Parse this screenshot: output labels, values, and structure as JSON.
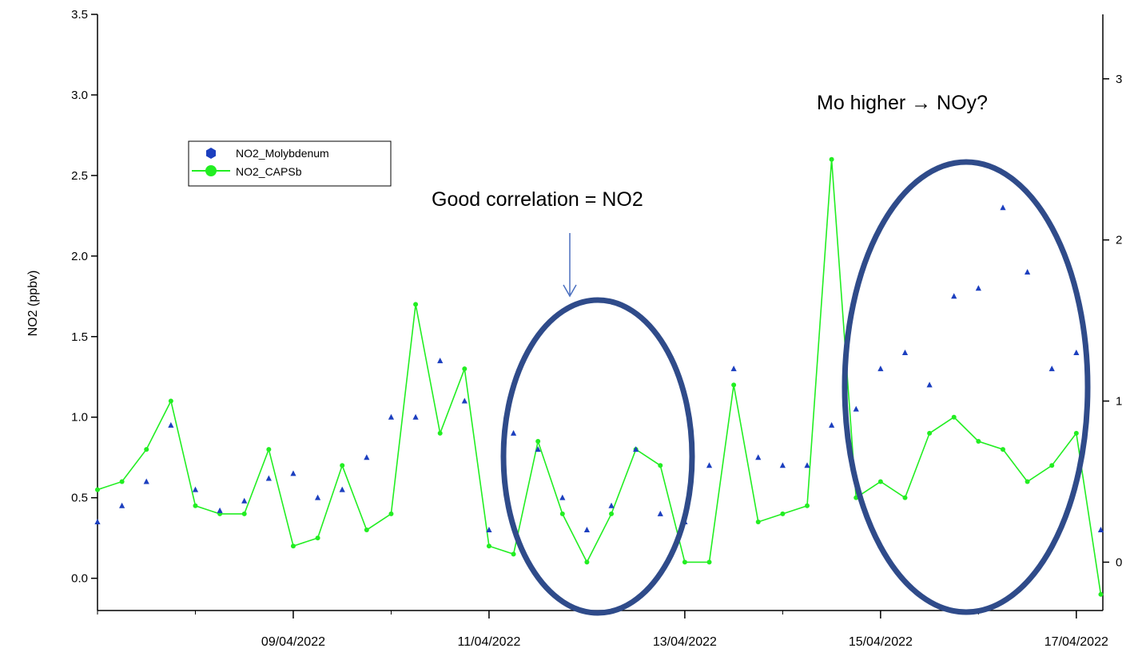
{
  "chart_data": {
    "type": "scatter",
    "ylabel": "NO2 (ppbv)",
    "x_tick_labels": [
      "09/04/2022",
      "11/04/2022",
      "13/04/2022",
      "15/04/2022",
      "17/04/2022"
    ],
    "x_ticks": [
      "2022-04-09",
      "2022-04-11",
      "2022-04-13",
      "2022-04-15",
      "2022-04-17"
    ],
    "xlim": [
      "2022-04-07T00:00",
      "2022-04-17T06:30"
    ],
    "ylim_left": [
      -0.2,
      3.5
    ],
    "ylim_right": [
      -0.3,
      3.4
    ],
    "left_tick_labels": [
      "0.0",
      "0.5",
      "1.0",
      "1.5",
      "2.0",
      "2.5",
      "3.0",
      "3.5"
    ],
    "right_tick_labels": [
      "0",
      "1",
      "2",
      "3"
    ],
    "grid": false,
    "legend_placement": "upper-left",
    "legend": [
      "NO2_Molybdenum",
      "NO2_CAPSb"
    ],
    "series": [
      {
        "name": "NO2_Molybdenum",
        "axis": "left",
        "style": "markers",
        "color": "#1c3fbf",
        "x": [
          "2022-04-07T00:00",
          "2022-04-07T06:00",
          "2022-04-07T12:00",
          "2022-04-07T18:00",
          "2022-04-08T00:00",
          "2022-04-08T06:00",
          "2022-04-08T12:00",
          "2022-04-08T18:00",
          "2022-04-09T00:00",
          "2022-04-09T06:00",
          "2022-04-09T12:00",
          "2022-04-09T18:00",
          "2022-04-10T00:00",
          "2022-04-10T06:00",
          "2022-04-10T12:00",
          "2022-04-10T18:00",
          "2022-04-11T00:00",
          "2022-04-11T06:00",
          "2022-04-11T12:00",
          "2022-04-11T18:00",
          "2022-04-12T00:00",
          "2022-04-12T06:00",
          "2022-04-12T12:00",
          "2022-04-12T18:00",
          "2022-04-13T00:00",
          "2022-04-13T06:00",
          "2022-04-13T12:00",
          "2022-04-13T18:00",
          "2022-04-14T00:00",
          "2022-04-14T06:00",
          "2022-04-14T12:00",
          "2022-04-14T18:00",
          "2022-04-15T00:00",
          "2022-04-15T06:00",
          "2022-04-15T12:00",
          "2022-04-15T18:00",
          "2022-04-16T00:00",
          "2022-04-16T06:00",
          "2022-04-16T12:00",
          "2022-04-16T18:00",
          "2022-04-17T00:00",
          "2022-04-17T06:00"
        ],
        "values": [
          0.35,
          0.45,
          0.6,
          0.95,
          0.55,
          0.42,
          0.48,
          0.62,
          0.65,
          0.5,
          0.55,
          0.75,
          1.0,
          1.0,
          1.35,
          1.1,
          0.3,
          0.9,
          0.8,
          0.5,
          0.3,
          0.45,
          0.8,
          0.4,
          0.35,
          0.7,
          1.3,
          0.75,
          0.7,
          0.7,
          0.95,
          1.05,
          1.3,
          1.4,
          1.2,
          1.75,
          1.8,
          2.3,
          1.9,
          1.3,
          1.4,
          0.3
        ]
      },
      {
        "name": "NO2_CAPSb",
        "axis": "right",
        "style": "line-markers",
        "color": "#22ee22",
        "x": [
          "2022-04-07T00:00",
          "2022-04-07T06:00",
          "2022-04-07T12:00",
          "2022-04-07T18:00",
          "2022-04-08T00:00",
          "2022-04-08T06:00",
          "2022-04-08T12:00",
          "2022-04-08T18:00",
          "2022-04-09T00:00",
          "2022-04-09T06:00",
          "2022-04-09T12:00",
          "2022-04-09T18:00",
          "2022-04-10T00:00",
          "2022-04-10T06:00",
          "2022-04-10T12:00",
          "2022-04-10T18:00",
          "2022-04-11T00:00",
          "2022-04-11T06:00",
          "2022-04-11T12:00",
          "2022-04-11T18:00",
          "2022-04-12T00:00",
          "2022-04-12T06:00",
          "2022-04-12T12:00",
          "2022-04-12T18:00",
          "2022-04-13T00:00",
          "2022-04-13T06:00",
          "2022-04-13T12:00",
          "2022-04-13T18:00",
          "2022-04-14T00:00",
          "2022-04-14T06:00",
          "2022-04-14T12:00",
          "2022-04-14T18:00",
          "2022-04-15T00:00",
          "2022-04-15T06:00",
          "2022-04-15T12:00",
          "2022-04-15T18:00",
          "2022-04-16T00:00",
          "2022-04-16T06:00",
          "2022-04-16T12:00",
          "2022-04-16T18:00",
          "2022-04-17T00:00",
          "2022-04-17T06:00"
        ],
        "values": [
          0.45,
          0.5,
          0.7,
          1.0,
          0.35,
          0.3,
          0.3,
          0.7,
          0.1,
          0.15,
          0.6,
          0.2,
          0.3,
          1.6,
          0.8,
          1.2,
          0.1,
          0.05,
          0.75,
          0.3,
          0.0,
          0.3,
          0.7,
          0.6,
          0.0,
          0.0,
          1.1,
          0.25,
          0.3,
          0.35,
          2.5,
          0.4,
          0.5,
          0.4,
          0.8,
          0.9,
          0.75,
          0.7,
          0.5,
          0.6,
          0.8,
          -0.2
        ]
      }
    ],
    "annotations": [
      {
        "text": "Good correlation = NO2"
      },
      {
        "text": "Mo higher → NOy?"
      }
    ]
  }
}
